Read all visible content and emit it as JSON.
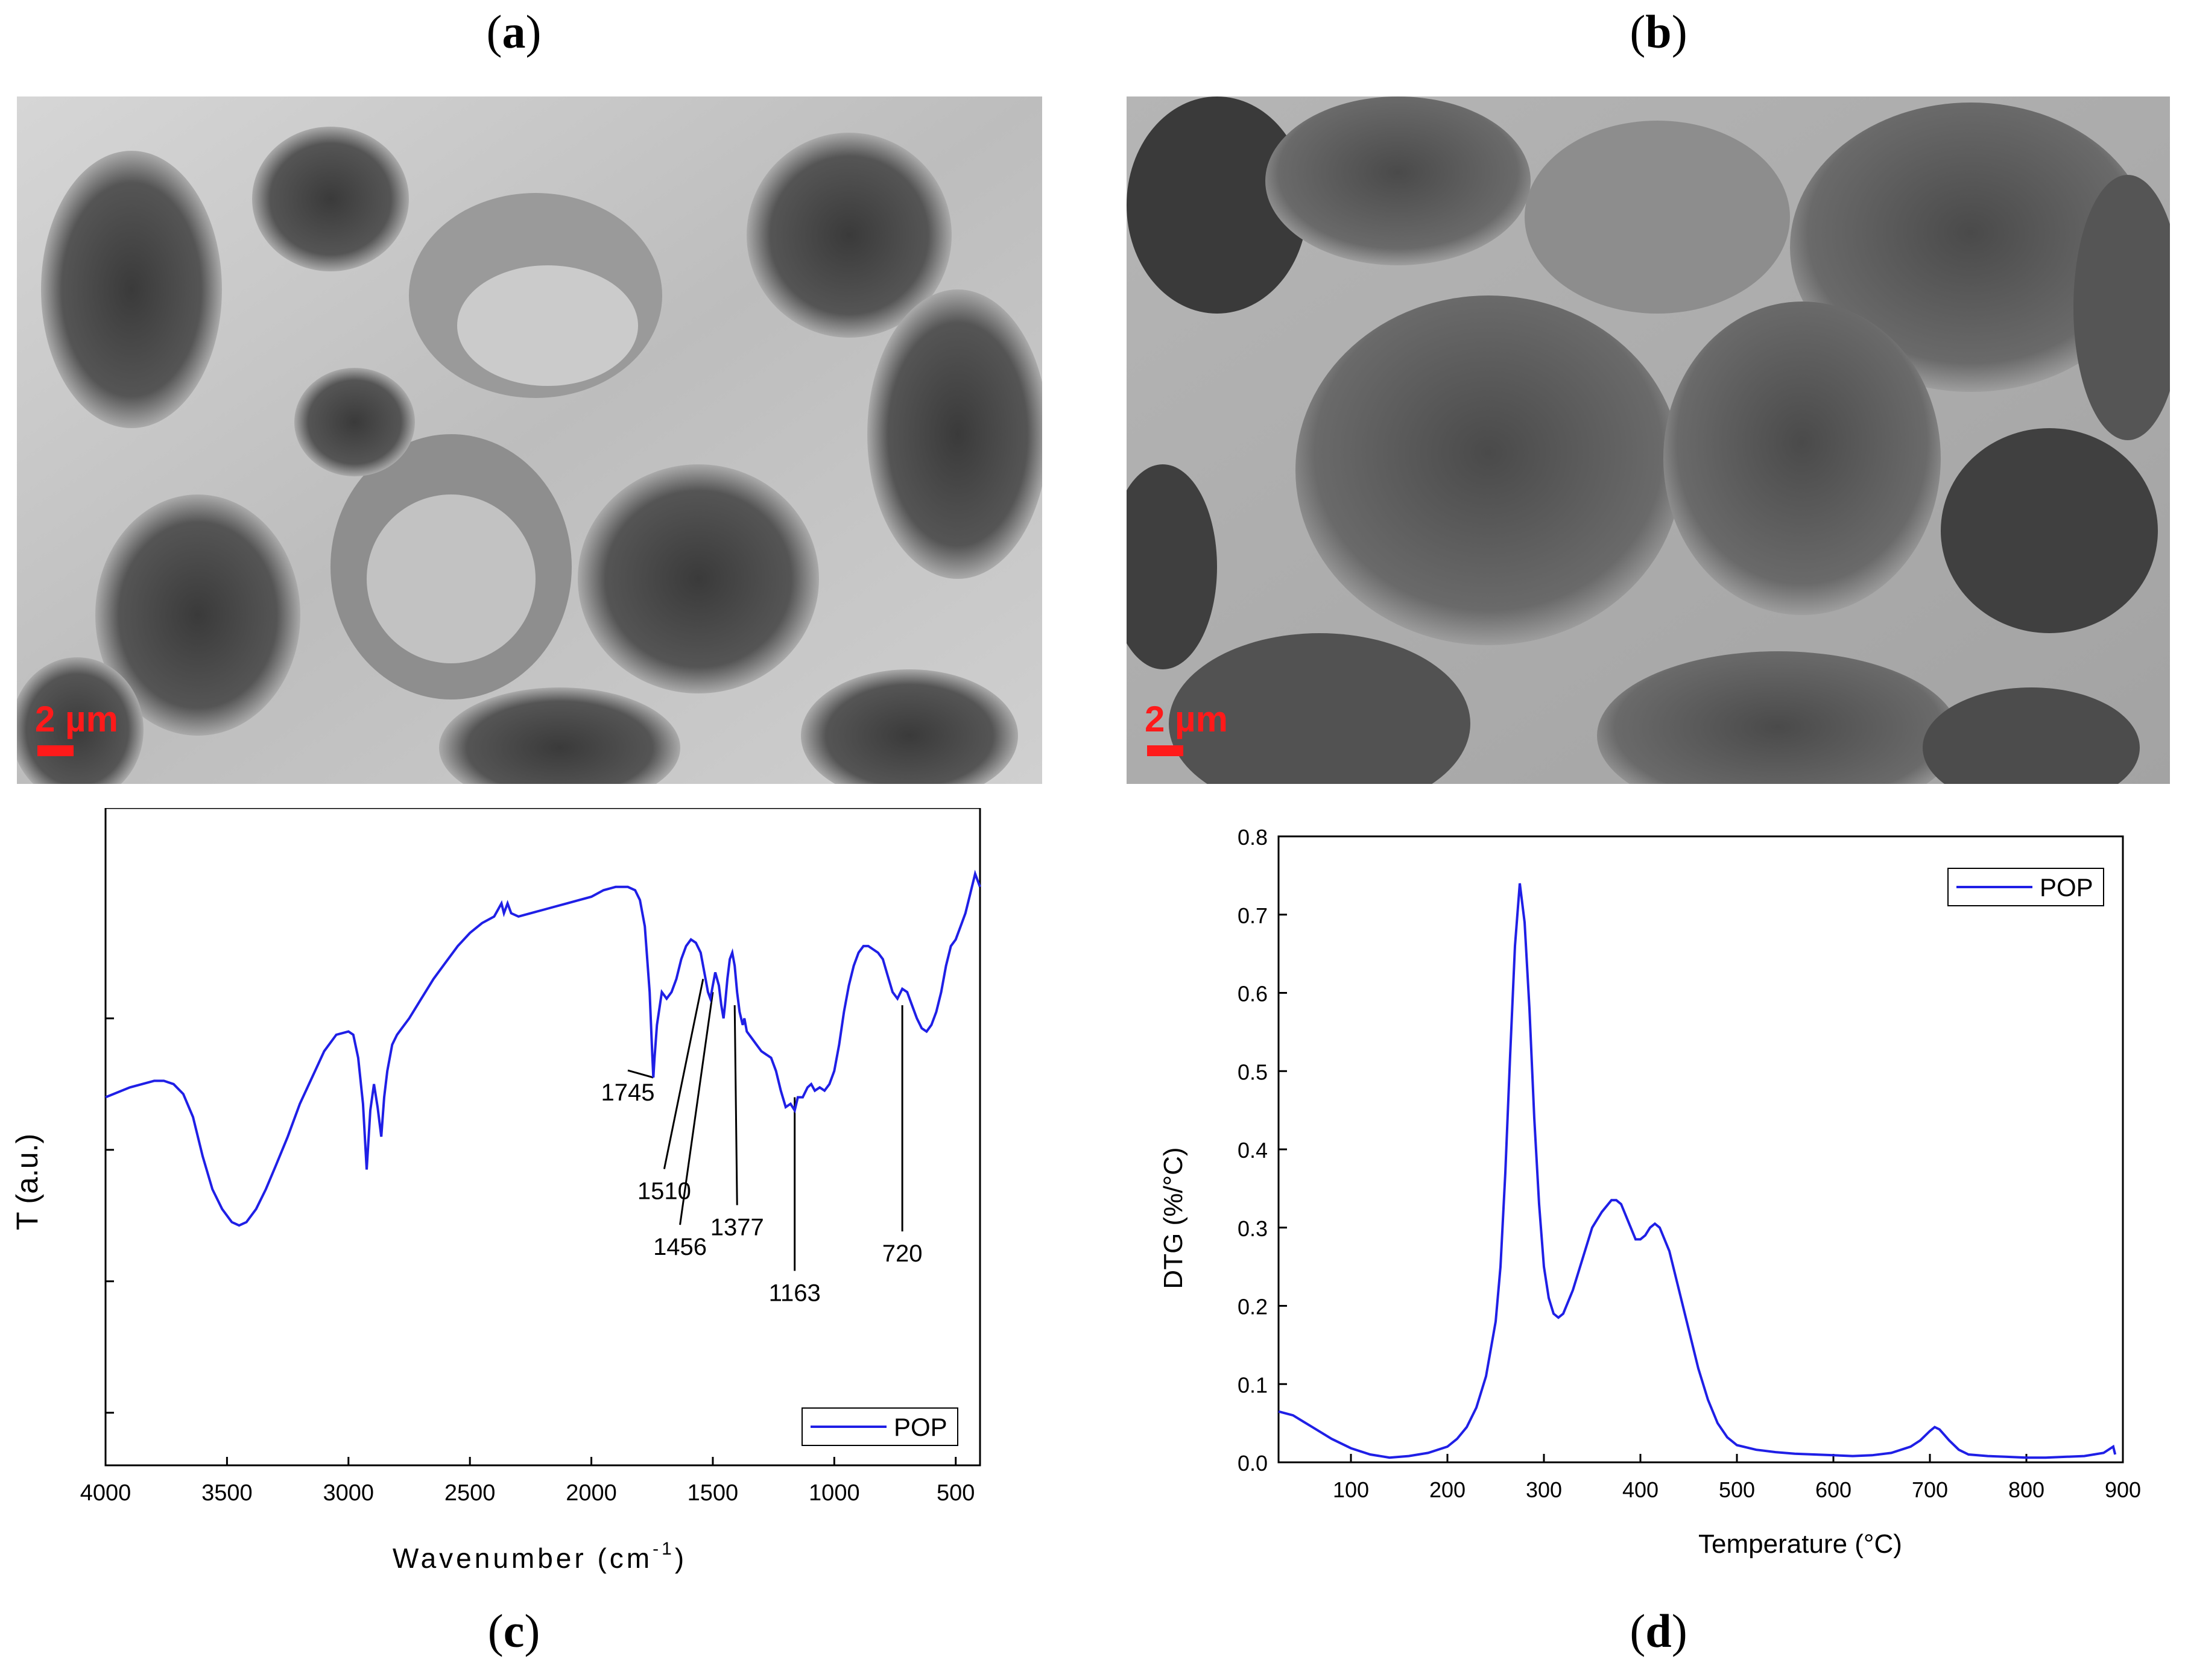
{
  "panels": {
    "a": {
      "open": "(",
      "letter": "a",
      "close": ")",
      "scale_text": "2 µm"
    },
    "b": {
      "open": "(",
      "letter": "b",
      "close": ")",
      "scale_text": "2 µm"
    },
    "c": {
      "open": "(",
      "letter": "c",
      "close": ")"
    },
    "d": {
      "open": "(",
      "letter": "d",
      "close": ")"
    }
  },
  "colors": {
    "line": "#1f1fe6",
    "scale": "#ff1a1a"
  },
  "chart_data": [
    {
      "type": "line",
      "panel": "c",
      "xlabel": "Wavenumber (cm",
      "xlabel_sup": "-1",
      "xlabel_end": ")",
      "ylabel": "T (a.u.)",
      "xlim": [
        4000,
        400
      ],
      "ylim": [
        0,
        1
      ],
      "x_reversed": true,
      "xticks": [
        4000,
        3500,
        3000,
        2500,
        2000,
        1500,
        1000,
        500
      ],
      "legend": {
        "entries": [
          "POP"
        ],
        "position": "bottom-right"
      },
      "series": [
        {
          "name": "POP",
          "x": [
            4000,
            3900,
            3800,
            3760,
            3720,
            3680,
            3640,
            3600,
            3560,
            3520,
            3480,
            3450,
            3420,
            3380,
            3340,
            3300,
            3250,
            3200,
            3150,
            3100,
            3050,
            3000,
            2980,
            2960,
            2940,
            2925,
            2910,
            2895,
            2880,
            2865,
            2853,
            2840,
            2820,
            2800,
            2780,
            2750,
            2700,
            2650,
            2600,
            2550,
            2500,
            2450,
            2400,
            2370,
            2360,
            2345,
            2330,
            2300,
            2250,
            2200,
            2150,
            2100,
            2050,
            2000,
            1950,
            1900,
            1850,
            1820,
            1800,
            1780,
            1760,
            1750,
            1745,
            1740,
            1730,
            1710,
            1690,
            1670,
            1650,
            1630,
            1610,
            1590,
            1570,
            1550,
            1530,
            1520,
            1510,
            1500,
            1490,
            1475,
            1465,
            1456,
            1450,
            1440,
            1430,
            1420,
            1410,
            1400,
            1390,
            1377,
            1370,
            1360,
            1340,
            1320,
            1300,
            1280,
            1260,
            1240,
            1220,
            1200,
            1180,
            1163,
            1150,
            1130,
            1110,
            1095,
            1080,
            1060,
            1040,
            1020,
            1000,
            980,
            960,
            940,
            920,
            900,
            880,
            860,
            840,
            820,
            800,
            780,
            760,
            740,
            720,
            700,
            680,
            660,
            640,
            620,
            600,
            580,
            560,
            540,
            520,
            500,
            480,
            460,
            440,
            420,
            400
          ],
          "y": [
            0.56,
            0.575,
            0.585,
            0.585,
            0.58,
            0.565,
            0.53,
            0.47,
            0.42,
            0.39,
            0.37,
            0.365,
            0.37,
            0.39,
            0.42,
            0.455,
            0.5,
            0.55,
            0.59,
            0.63,
            0.655,
            0.66,
            0.655,
            0.62,
            0.55,
            0.45,
            0.54,
            0.58,
            0.545,
            0.5,
            0.56,
            0.6,
            0.64,
            0.655,
            0.665,
            0.68,
            0.71,
            0.74,
            0.765,
            0.79,
            0.81,
            0.825,
            0.835,
            0.855,
            0.84,
            0.855,
            0.84,
            0.835,
            0.84,
            0.845,
            0.85,
            0.855,
            0.86,
            0.865,
            0.875,
            0.88,
            0.88,
            0.875,
            0.86,
            0.82,
            0.72,
            0.63,
            0.59,
            0.62,
            0.67,
            0.72,
            0.71,
            0.72,
            0.74,
            0.77,
            0.79,
            0.8,
            0.795,
            0.78,
            0.74,
            0.72,
            0.71,
            0.73,
            0.75,
            0.73,
            0.7,
            0.68,
            0.7,
            0.74,
            0.77,
            0.78,
            0.76,
            0.72,
            0.69,
            0.67,
            0.68,
            0.66,
            0.65,
            0.64,
            0.63,
            0.625,
            0.62,
            0.6,
            0.57,
            0.545,
            0.55,
            0.54,
            0.56,
            0.56,
            0.575,
            0.58,
            0.57,
            0.575,
            0.57,
            0.58,
            0.6,
            0.64,
            0.69,
            0.73,
            0.76,
            0.78,
            0.79,
            0.79,
            0.785,
            0.78,
            0.77,
            0.745,
            0.72,
            0.71,
            0.725,
            0.72,
            0.7,
            0.68,
            0.665,
            0.66,
            0.67,
            0.69,
            0.72,
            0.76,
            0.79,
            0.8,
            0.82,
            0.84,
            0.87,
            0.9,
            0.88
          ]
        }
      ],
      "annotations": [
        {
          "text": "1745",
          "x": 1745,
          "y": 0.59,
          "label_x": 1850,
          "label_y": 0.555
        },
        {
          "text": "1510",
          "x": 1540,
          "y": 0.74,
          "label_x": 1700,
          "label_y": 0.405
        },
        {
          "text": "1456",
          "x": 1500,
          "y": 0.72,
          "label_x": 1635,
          "label_y": 0.32
        },
        {
          "text": "1377",
          "x": 1410,
          "y": 0.7,
          "label_x": 1400,
          "label_y": 0.35
        },
        {
          "text": "1163",
          "x": 1163,
          "y": 0.56,
          "label_x": 1163,
          "label_y": 0.25
        },
        {
          "text": "720",
          "x": 720,
          "y": 0.7,
          "label_x": 720,
          "label_y": 0.31
        }
      ]
    },
    {
      "type": "line",
      "panel": "d",
      "xlabel": "Temperature (°C)",
      "ylabel": "DTG (%/°C)",
      "xlim": [
        25,
        900
      ],
      "ylim": [
        0,
        0.8
      ],
      "xticks": [
        100,
        200,
        300,
        400,
        500,
        600,
        700,
        800,
        900
      ],
      "yticks": [
        0.0,
        0.1,
        0.2,
        0.3,
        0.4,
        0.5,
        0.6,
        0.7,
        0.8
      ],
      "ytick_labels": [
        "0.0",
        "0.1",
        "0.2",
        "0.3",
        "0.4",
        "0.5",
        "0.6",
        "0.7",
        "0.8"
      ],
      "legend": {
        "entries": [
          "POP"
        ],
        "position": "top-right"
      },
      "series": [
        {
          "name": "POP",
          "x": [
            25,
            40,
            60,
            80,
            100,
            120,
            140,
            160,
            180,
            200,
            210,
            220,
            230,
            240,
            250,
            255,
            260,
            265,
            270,
            275,
            280,
            285,
            290,
            295,
            300,
            305,
            310,
            315,
            320,
            330,
            340,
            350,
            360,
            370,
            375,
            380,
            390,
            395,
            400,
            405,
            410,
            415,
            420,
            430,
            440,
            450,
            460,
            470,
            480,
            490,
            500,
            520,
            540,
            560,
            580,
            600,
            620,
            640,
            660,
            680,
            690,
            700,
            705,
            710,
            715,
            720,
            730,
            740,
            760,
            780,
            800,
            820,
            840,
            860,
            880,
            890,
            892
          ],
          "y": [
            0.065,
            0.06,
            0.045,
            0.03,
            0.018,
            0.01,
            0.006,
            0.008,
            0.012,
            0.02,
            0.03,
            0.045,
            0.07,
            0.11,
            0.18,
            0.25,
            0.37,
            0.52,
            0.66,
            0.74,
            0.69,
            0.58,
            0.44,
            0.33,
            0.25,
            0.21,
            0.19,
            0.185,
            0.19,
            0.22,
            0.26,
            0.3,
            0.32,
            0.335,
            0.335,
            0.33,
            0.3,
            0.285,
            0.285,
            0.29,
            0.3,
            0.305,
            0.3,
            0.27,
            0.22,
            0.17,
            0.12,
            0.08,
            0.05,
            0.032,
            0.022,
            0.016,
            0.013,
            0.011,
            0.01,
            0.009,
            0.008,
            0.009,
            0.012,
            0.02,
            0.028,
            0.04,
            0.045,
            0.042,
            0.035,
            0.028,
            0.016,
            0.01,
            0.008,
            0.007,
            0.006,
            0.006,
            0.007,
            0.008,
            0.012,
            0.02,
            0.01
          ]
        }
      ]
    }
  ]
}
